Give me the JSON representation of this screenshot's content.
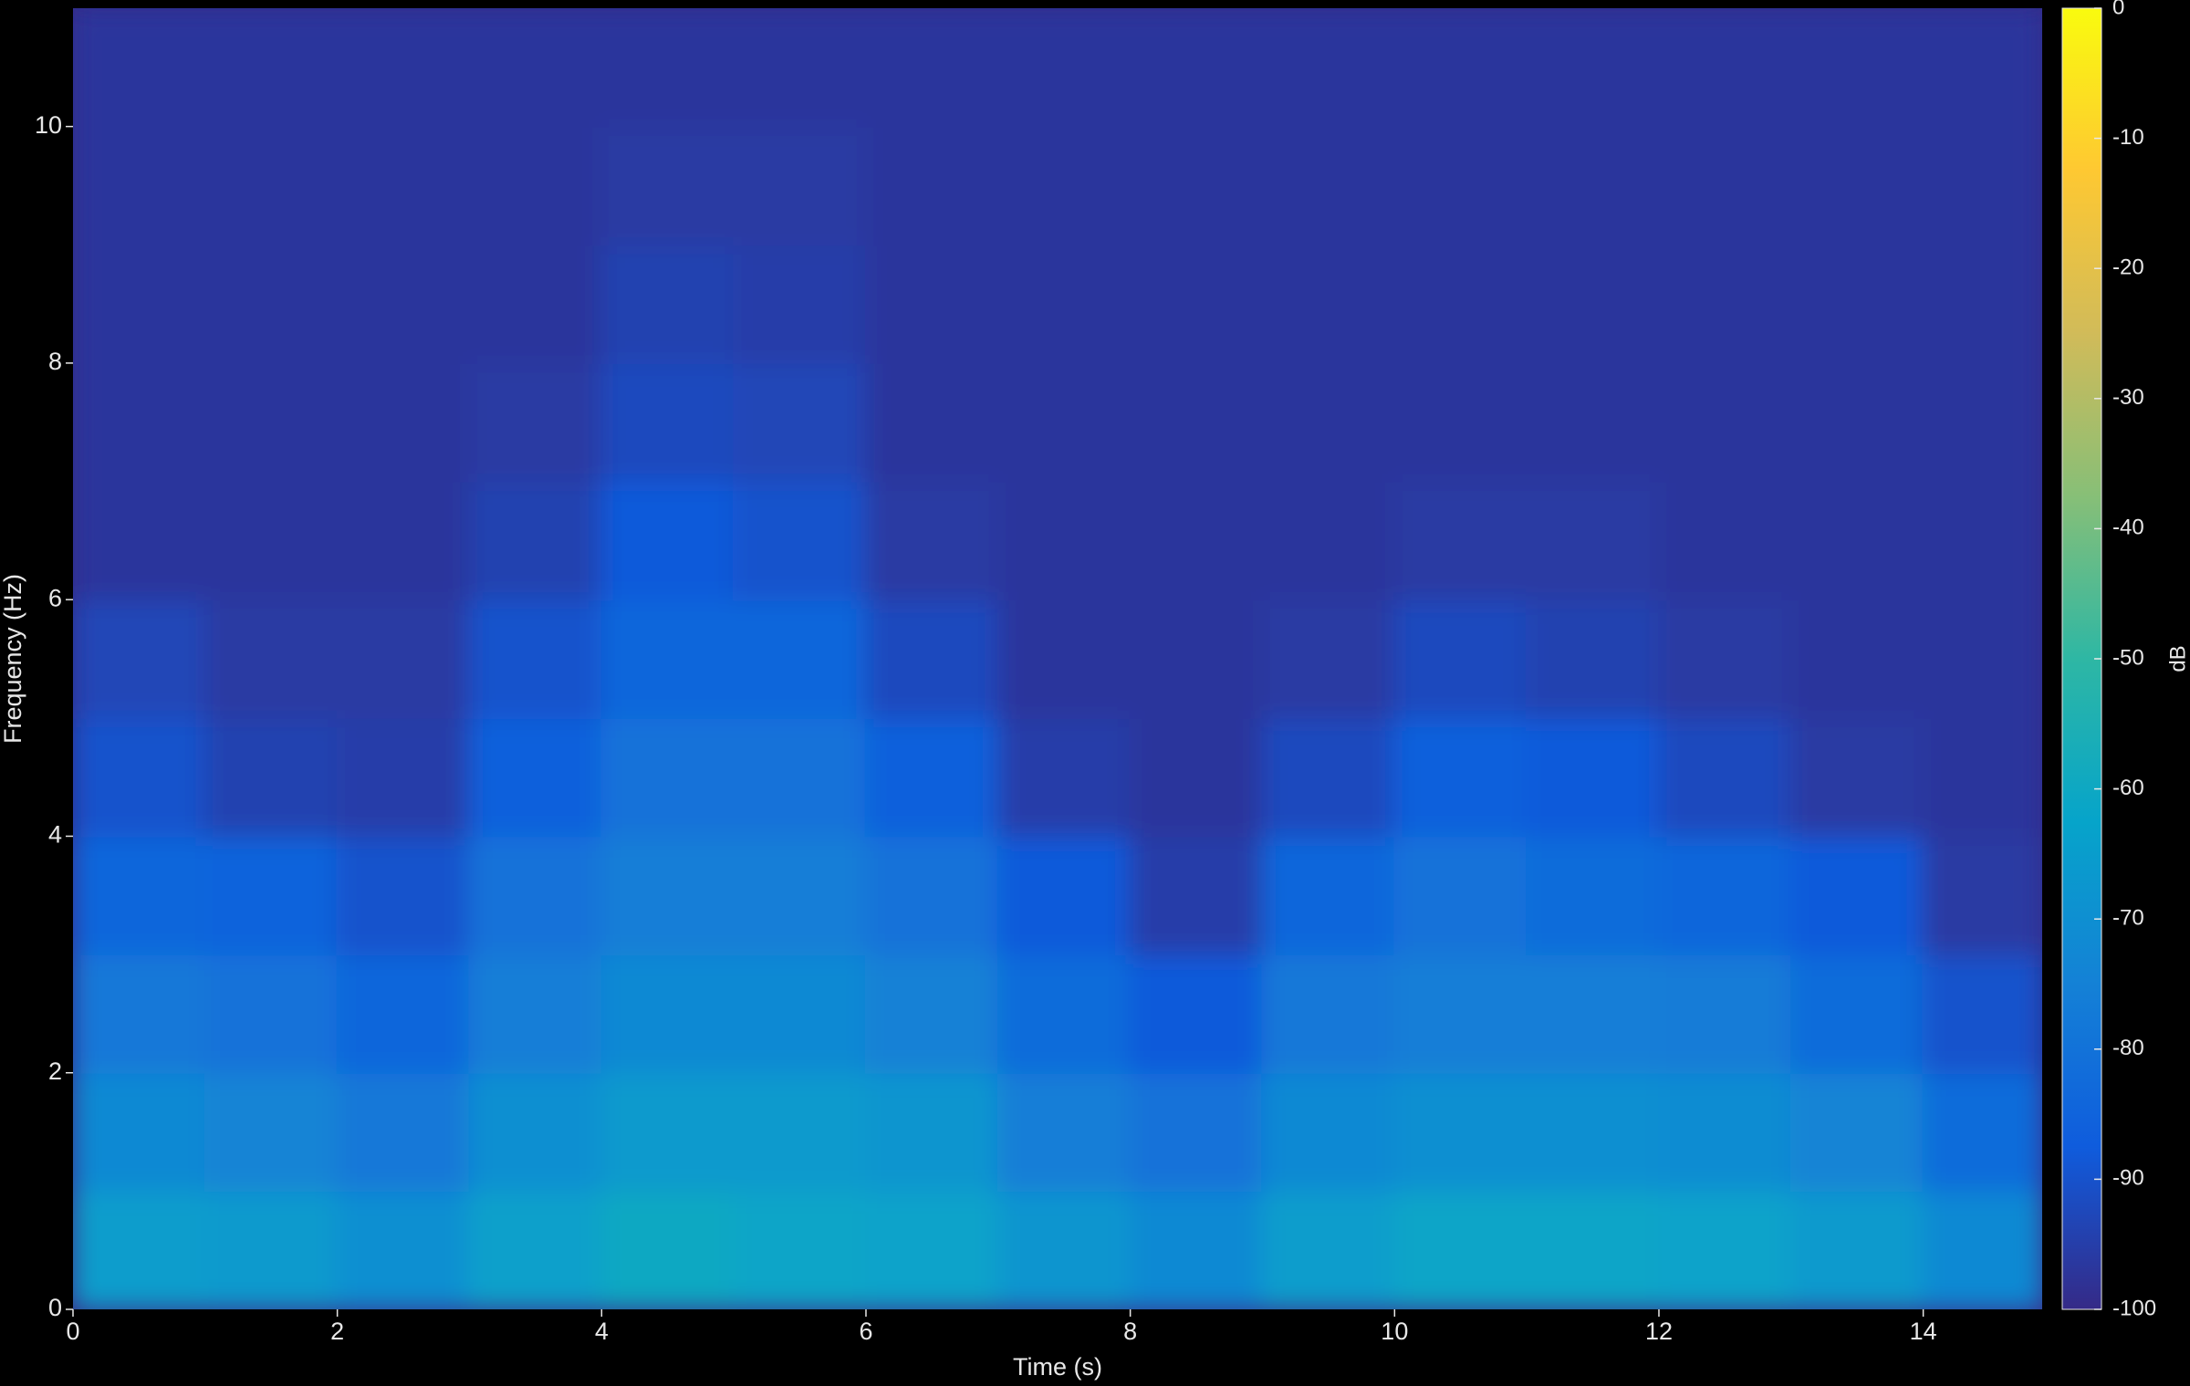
{
  "chart_data": {
    "type": "heatmap",
    "xlabel": "Time (s)",
    "ylabel": "Frequency (Hz)",
    "colorbar_label": "dB",
    "xbins": [
      0,
      1,
      2,
      3,
      4,
      5,
      6,
      7,
      8,
      9,
      10,
      11,
      12,
      13,
      14,
      14.9
    ],
    "ybins": [
      0,
      1,
      2,
      3,
      4,
      5,
      6,
      7,
      8,
      9,
      10,
      11
    ],
    "values": [
      [
        -65,
        -66,
        -70,
        -64,
        -60,
        -62,
        -63,
        -68,
        -72,
        -65,
        -62,
        -62,
        -63,
        -66,
        -72
      ],
      [
        -72,
        -74,
        -78,
        -70,
        -66,
        -66,
        -68,
        -76,
        -80,
        -72,
        -70,
        -70,
        -71,
        -74,
        -82
      ],
      [
        -78,
        -80,
        -84,
        -76,
        -72,
        -72,
        -75,
        -82,
        -88,
        -78,
        -76,
        -76,
        -77,
        -82,
        -90
      ],
      [
        -84,
        -85,
        -90,
        -80,
        -76,
        -76,
        -80,
        -88,
        -95,
        -84,
        -80,
        -82,
        -84,
        -88,
        -96
      ],
      [
        -90,
        -94,
        -95,
        -86,
        -80,
        -80,
        -86,
        -95,
        -97,
        -92,
        -86,
        -88,
        -92,
        -96,
        -97
      ],
      [
        -93,
        -96,
        -96,
        -90,
        -84,
        -84,
        -92,
        -97,
        -97,
        -96,
        -92,
        -94,
        -96,
        -97,
        -97
      ],
      [
        -97,
        -97,
        -97,
        -94,
        -88,
        -90,
        -96,
        -97,
        -97,
        -97,
        -96,
        -96,
        -97,
        -97,
        -97
      ],
      [
        -97,
        -97,
        -97,
        -96,
        -92,
        -93,
        -97,
        -97,
        -97,
        -97,
        -97,
        -97,
        -97,
        -97,
        -97
      ],
      [
        -97,
        -97,
        -97,
        -97,
        -94,
        -95,
        -97,
        -97,
        -97,
        -97,
        -97,
        -97,
        -97,
        -97,
        -97
      ],
      [
        -97,
        -97,
        -97,
        -97,
        -96,
        -96,
        -97,
        -97,
        -97,
        -97,
        -97,
        -97,
        -97,
        -97,
        -97
      ],
      [
        -97,
        -97,
        -97,
        -97,
        -97,
        -97,
        -97,
        -97,
        -97,
        -97,
        -97,
        -97,
        -97,
        -97,
        -97
      ]
    ],
    "xlim": [
      0,
      14.9
    ],
    "ylim": [
      0,
      11
    ],
    "xticks": [
      0,
      2,
      4,
      6,
      8,
      10,
      12,
      14
    ],
    "yticks": [
      0,
      2,
      4,
      6,
      8,
      10
    ],
    "clim": [
      -100,
      0
    ],
    "cticks": [
      0,
      -10,
      -20,
      -30,
      -40,
      -50,
      -60,
      -70,
      -80,
      -90,
      -100
    ],
    "colormap": [
      "#352a87",
      "#0f5cdd",
      "#1481d6",
      "#06a4ca",
      "#2eb7a4",
      "#87bf77",
      "#d1bb59",
      "#fec832",
      "#f9fb0e"
    ]
  }
}
